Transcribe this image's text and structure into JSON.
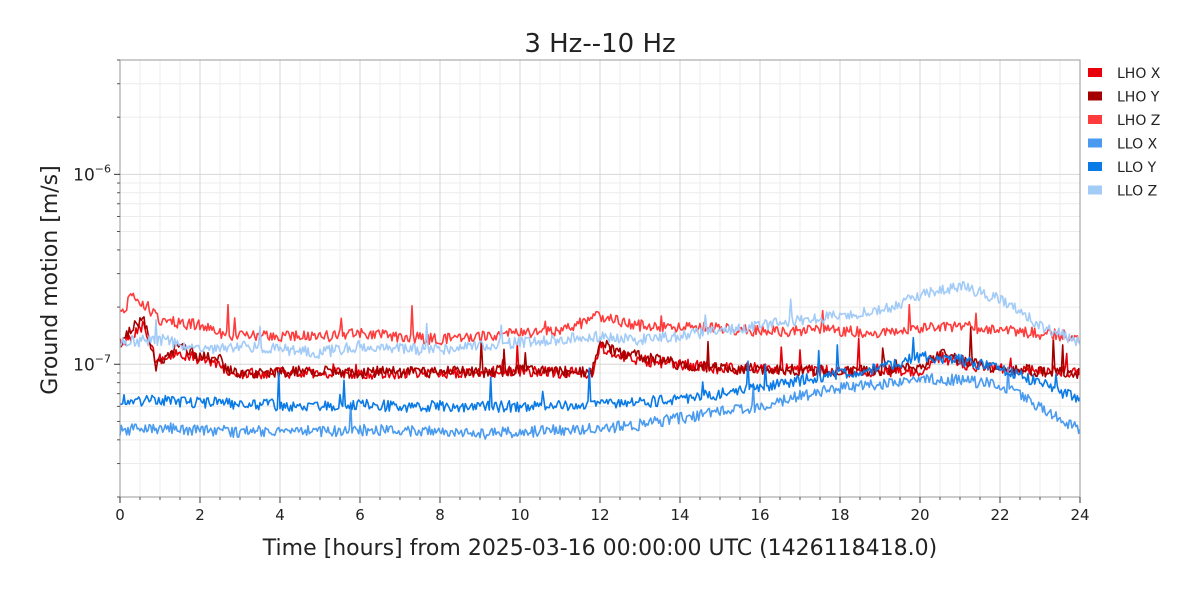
{
  "chart_data": {
    "type": "line",
    "title": "3 Hz--10 Hz",
    "xlabel": "Time [hours] from 2025-03-16 00:00:00 UTC (1426118418.0)",
    "ylabel": "Ground motion [m/s]",
    "xlim": [
      0,
      24
    ],
    "ylim": [
      2e-08,
      4e-06
    ],
    "yscale": "log",
    "x_ticks": [
      0,
      2,
      4,
      6,
      8,
      10,
      12,
      14,
      16,
      18,
      20,
      22,
      24
    ],
    "x_tick_labels": [
      "0",
      "2",
      "4",
      "6",
      "8",
      "10",
      "12",
      "14",
      "16",
      "18",
      "20",
      "22",
      "24"
    ],
    "y_ticks": [
      1e-07,
      1e-06
    ],
    "y_tick_labels": [
      [
        "10",
        "−7"
      ],
      [
        "10",
        "−6"
      ]
    ],
    "grid": true,
    "legend_position": "outside-right-top",
    "series": [
      {
        "name": "LHO X",
        "color": "#e8000b",
        "width": 1.6,
        "x": [
          0,
          0.3,
          0.6,
          0.9,
          1.2,
          1.5,
          2,
          2.5,
          2.7,
          3,
          4,
          5,
          6,
          7,
          8,
          9,
          10,
          11,
          11.8,
          12,
          12.5,
          13,
          14,
          15,
          16,
          17,
          18,
          19,
          20,
          20.5,
          21,
          22,
          23,
          24
        ],
        "y": [
          1.3e-07,
          1.4e-07,
          1.6e-07,
          1.05e-07,
          1.1e-07,
          1.15e-07,
          1.05e-07,
          1e-07,
          9e-08,
          8.9e-08,
          9e-08,
          9e-08,
          8.9e-08,
          9e-08,
          9e-08,
          9e-08,
          9.2e-08,
          9e-08,
          9e-08,
          1.25e-07,
          1.1e-07,
          1.05e-07,
          1e-07,
          9.5e-08,
          9.5e-08,
          9.3e-08,
          9.2e-08,
          9.2e-08,
          9.3e-08,
          1.1e-07,
          1e-07,
          9.5e-08,
          9.3e-08,
          9e-08
        ]
      },
      {
        "name": "LHO Y",
        "color": "#a50000",
        "width": 1.6,
        "x": [
          0,
          0.3,
          0.6,
          0.9,
          1.2,
          1.5,
          2,
          2.5,
          2.7,
          3,
          4,
          5,
          6,
          7,
          8,
          9,
          10,
          11,
          11.8,
          12,
          12.5,
          13,
          14,
          15,
          16,
          17,
          18,
          19,
          20,
          20.5,
          21,
          22,
          23,
          24
        ],
        "y": [
          1.2e-07,
          1.6e-07,
          1.7e-07,
          9.8e-08,
          1.15e-07,
          1.25e-07,
          1.1e-07,
          1.05e-07,
          9.2e-08,
          9e-08,
          9.1e-08,
          9.2e-08,
          9e-08,
          9.1e-08,
          9.1e-08,
          9.1e-08,
          9.3e-08,
          9.1e-08,
          9.1e-08,
          1.3e-07,
          1.15e-07,
          1.1e-07,
          1e-07,
          9.5e-08,
          9.4e-08,
          9.3e-08,
          9.2e-08,
          9.3e-08,
          9.5e-08,
          1.15e-07,
          1.05e-07,
          9.5e-08,
          9.2e-08,
          8.9e-08
        ]
      },
      {
        "name": "LHO Z",
        "color": "#ff3b3b",
        "width": 1.6,
        "x": [
          0,
          0.3,
          0.6,
          1,
          1.5,
          2,
          2.5,
          3,
          4,
          5,
          6,
          7,
          8,
          9,
          10,
          11,
          12,
          13,
          14,
          15,
          16,
          17,
          18,
          19,
          20,
          21,
          22,
          23,
          24
        ],
        "y": [
          1.8e-07,
          2.3e-07,
          2.1e-07,
          1.7e-07,
          1.65e-07,
          1.6e-07,
          1.45e-07,
          1.4e-07,
          1.4e-07,
          1.4e-07,
          1.45e-07,
          1.4e-07,
          1.35e-07,
          1.4e-07,
          1.45e-07,
          1.5e-07,
          1.8e-07,
          1.6e-07,
          1.55e-07,
          1.55e-07,
          1.5e-07,
          1.5e-07,
          1.5e-07,
          1.45e-07,
          1.55e-07,
          1.6e-07,
          1.5e-07,
          1.45e-07,
          1.4e-07
        ]
      },
      {
        "name": "LLO X",
        "color": "#4a9bef",
        "width": 1.6,
        "x": [
          0,
          1,
          2,
          3,
          4,
          5,
          6,
          7,
          8,
          9,
          10,
          11,
          12,
          13,
          14,
          15,
          16,
          17,
          18,
          19,
          20,
          21,
          22,
          23,
          24
        ],
        "y": [
          4.5e-08,
          4.6e-08,
          4.5e-08,
          4.4e-08,
          4.5e-08,
          4.4e-08,
          4.5e-08,
          4.5e-08,
          4.4e-08,
          4.3e-08,
          4.4e-08,
          4.5e-08,
          4.6e-08,
          4.8e-08,
          5.2e-08,
          5.6e-08,
          6e-08,
          6.8e-08,
          7.5e-08,
          7.8e-08,
          8.5e-08,
          8.2e-08,
          7.8e-08,
          6e-08,
          4.5e-08
        ]
      },
      {
        "name": "LLO Y",
        "color": "#0a7ae6",
        "width": 1.6,
        "x": [
          0,
          1,
          2,
          3,
          4,
          5,
          6,
          7,
          8,
          9,
          10,
          11,
          12,
          13,
          14,
          15,
          16,
          17,
          18,
          19,
          20,
          21,
          22,
          23,
          24
        ],
        "y": [
          6.5e-08,
          6.4e-08,
          6.3e-08,
          6.2e-08,
          6.1e-08,
          6e-08,
          6.1e-08,
          6e-08,
          6e-08,
          6e-08,
          6e-08,
          6.1e-08,
          6.2e-08,
          6.3e-08,
          6.5e-08,
          7e-08,
          7.5e-08,
          8.2e-08,
          9e-08,
          9.5e-08,
          1.1e-07,
          1.05e-07,
          9.5e-08,
          8e-08,
          6.5e-08
        ]
      },
      {
        "name": "LLO Z",
        "color": "#a3cbf7",
        "width": 1.6,
        "x": [
          0,
          1,
          2,
          3,
          4,
          5,
          6,
          7,
          8,
          9,
          10,
          11,
          12,
          13,
          14,
          15,
          16,
          17,
          18,
          19,
          20,
          21,
          22,
          23,
          24
        ],
        "y": [
          1.3e-07,
          1.35e-07,
          1.2e-07,
          1.25e-07,
          1.2e-07,
          1.15e-07,
          1.25e-07,
          1.2e-07,
          1.2e-07,
          1.25e-07,
          1.3e-07,
          1.35e-07,
          1.4e-07,
          1.35e-07,
          1.4e-07,
          1.5e-07,
          1.6e-07,
          1.7e-07,
          1.8e-07,
          1.9e-07,
          2.3e-07,
          2.6e-07,
          2.2e-07,
          1.6e-07,
          1.3e-07
        ]
      }
    ]
  }
}
